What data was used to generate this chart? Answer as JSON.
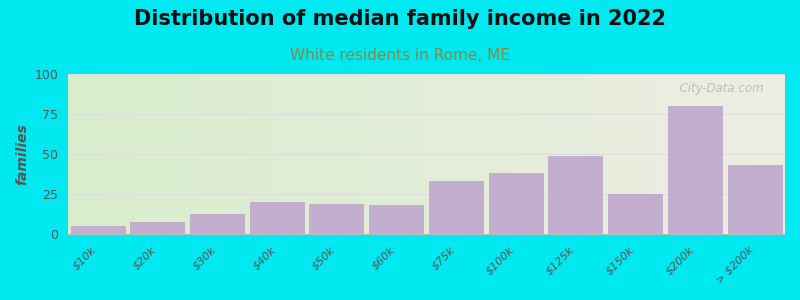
{
  "title": "Distribution of median family income in 2022",
  "subtitle": "White residents in Rome, ME",
  "categories": [
    "$10k",
    "$20k",
    "$30k",
    "$40k",
    "$50k",
    "$60k",
    "$75k",
    "$100k",
    "$125k",
    "$150k",
    "$200k",
    "> $200k"
  ],
  "values": [
    5,
    8,
    13,
    20,
    19,
    18,
    33,
    38,
    49,
    25,
    80,
    43
  ],
  "bar_color": "#c4aed0",
  "background_outer": "#00e8f0",
  "background_plot_color_left": "#d8edcc",
  "background_plot_color_right": "#eeeee4",
  "ylabel": "families",
  "ylim": [
    0,
    100
  ],
  "yticks": [
    0,
    25,
    50,
    75,
    100
  ],
  "title_fontsize": 15,
  "subtitle_fontsize": 11,
  "subtitle_color": "#888844",
  "watermark": "  City-Data.com",
  "grid_color": "#dddddd",
  "tick_label_color": "#555555"
}
